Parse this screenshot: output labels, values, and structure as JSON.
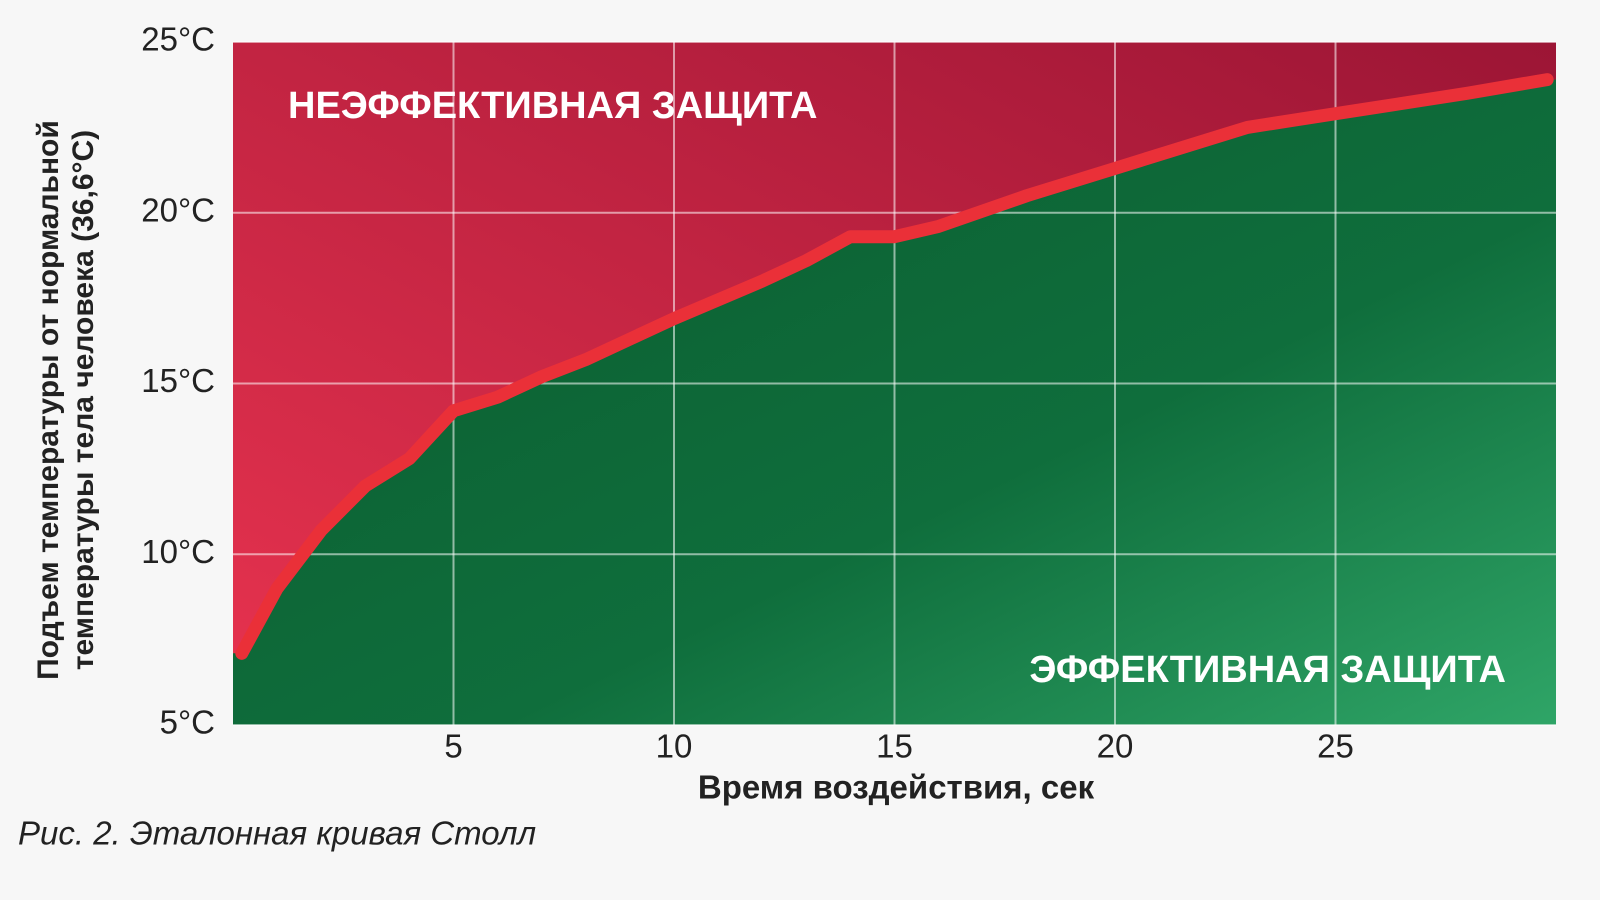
{
  "chart_data": {
    "type": "line",
    "x": [
      0.2,
      1,
      2,
      3,
      4,
      5,
      6,
      7,
      8,
      10,
      12,
      13,
      14,
      15,
      16,
      18,
      20,
      23,
      25,
      28,
      29.8
    ],
    "values": [
      7.1,
      9.0,
      10.7,
      12.0,
      12.8,
      14.2,
      14.6,
      15.2,
      15.7,
      16.9,
      18.0,
      18.6,
      19.3,
      19.3,
      19.6,
      20.5,
      21.3,
      22.5,
      22.9,
      23.5,
      23.9
    ],
    "color": "#ea3038",
    "upper_color": "#d42c4a",
    "lower_color": "#0d6b3a",
    "xlim": [
      0,
      30
    ],
    "ylim": [
      5,
      25
    ],
    "xticks": [
      5,
      10,
      15,
      20,
      25
    ],
    "yticks": [
      {
        "value": 5,
        "label": "5°C"
      },
      {
        "value": 10,
        "label": "10°C"
      },
      {
        "value": 15,
        "label": "15°C"
      },
      {
        "value": 20,
        "label": "20°C"
      },
      {
        "value": 25,
        "label": "25°C"
      }
    ],
    "grid": true,
    "x_label": "Время воздействия, сек",
    "y_label": [
      "Подъем температуры от нормальной",
      "температуры тела человека (36,6°С)"
    ],
    "annotations": [
      "НЕЭФФЕКТИВНАЯ ЗАЩИТА",
      "ЭФФЕКТИВНАЯ ЗАЩИТА"
    ],
    "caption": "Рис. 2. Эталонная кривая Столл"
  }
}
